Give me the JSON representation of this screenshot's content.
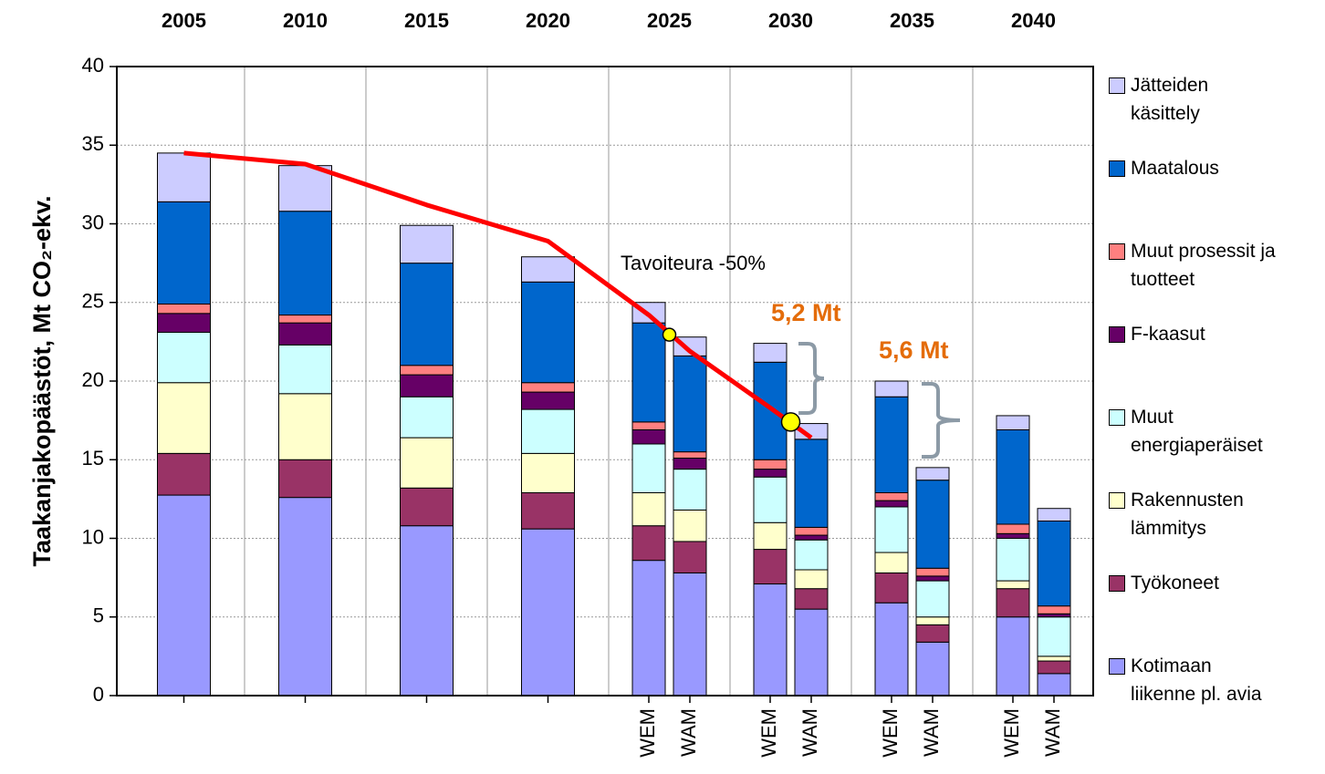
{
  "chart_data": {
    "type": "stacked_bar",
    "ylabel": "Taakanjakopäästöt, Mt CO₂-ekv.",
    "ylim": [
      0,
      40
    ],
    "yticks": [
      0,
      5,
      10,
      15,
      20,
      25,
      30,
      35,
      40
    ],
    "grid": true,
    "legend": "right",
    "groups": [
      {
        "label": "2005",
        "bars": [
          null
        ]
      },
      {
        "label": "2010",
        "bars": [
          null
        ]
      },
      {
        "label": "2015",
        "bars": [
          null
        ]
      },
      {
        "label": "2020",
        "bars": [
          null
        ]
      },
      {
        "label": "2025",
        "bars": [
          "WEM",
          "WAM"
        ]
      },
      {
        "label": "2030",
        "bars": [
          "WEM",
          "WAM"
        ]
      },
      {
        "label": "2035",
        "bars": [
          "WEM",
          "WAM"
        ]
      },
      {
        "label": "2040",
        "bars": [
          "WEM",
          "WAM"
        ]
      }
    ],
    "series": [
      {
        "name": "Kotimaan liikenne pl. avia",
        "color": "#9999ff",
        "values": [
          12.75,
          12.6,
          10.8,
          10.6,
          8.6,
          7.8,
          7.1,
          5.5,
          5.9,
          3.4,
          5.0,
          1.4
        ]
      },
      {
        "name": "Työkoneet",
        "color": "#993366",
        "values": [
          2.65,
          2.4,
          2.4,
          2.3,
          2.2,
          2.0,
          2.2,
          1.3,
          1.9,
          1.1,
          1.8,
          0.8
        ]
      },
      {
        "name": "Rakennusten lämmitys",
        "color": "#ffffcc",
        "values": [
          4.5,
          4.2,
          3.2,
          2.5,
          2.1,
          2.0,
          1.7,
          1.2,
          1.3,
          0.5,
          0.5,
          0.3
        ]
      },
      {
        "name": "Muut energiaperäiset",
        "color": "#ccffff",
        "values": [
          3.2,
          3.1,
          2.6,
          2.8,
          3.1,
          2.6,
          2.9,
          1.9,
          2.9,
          2.3,
          2.7,
          2.5
        ]
      },
      {
        "name": "F-kaasut",
        "color": "#660066",
        "values": [
          1.2,
          1.4,
          1.4,
          1.1,
          0.9,
          0.7,
          0.5,
          0.3,
          0.4,
          0.3,
          0.3,
          0.2
        ]
      },
      {
        "name": "Muut prosessit ja tuotteet",
        "color": "#ff8080",
        "values": [
          0.6,
          0.5,
          0.6,
          0.6,
          0.5,
          0.4,
          0.6,
          0.5,
          0.5,
          0.5,
          0.6,
          0.5
        ]
      },
      {
        "name": "Maatalous",
        "color": "#0066cc",
        "values": [
          6.5,
          6.6,
          6.5,
          6.4,
          6.3,
          6.1,
          6.2,
          5.6,
          6.1,
          5.6,
          6.0,
          5.4
        ]
      },
      {
        "name": "Jätteiden käsittely",
        "color": "#ccccff",
        "values": [
          3.1,
          2.9,
          2.4,
          1.6,
          1.3,
          1.2,
          1.2,
          1.0,
          1.0,
          0.8,
          0.9,
          0.8
        ]
      }
    ],
    "target_line": {
      "label": "Tavoiteura -50%",
      "color": "#ff0000",
      "values": [
        34.5,
        33.8,
        31.2,
        28.9,
        24.2,
        21.9,
        18.3,
        16.4,
        null,
        null,
        null,
        null
      ]
    },
    "target_points": {
      "color": "#ffff00",
      "values": [
        22.95,
        17.4
      ]
    },
    "annotations": [
      {
        "text": "5,2 Mt",
        "color": "#e46c0a"
      },
      {
        "text": "5,6 Mt",
        "color": "#e46c0a"
      }
    ]
  }
}
